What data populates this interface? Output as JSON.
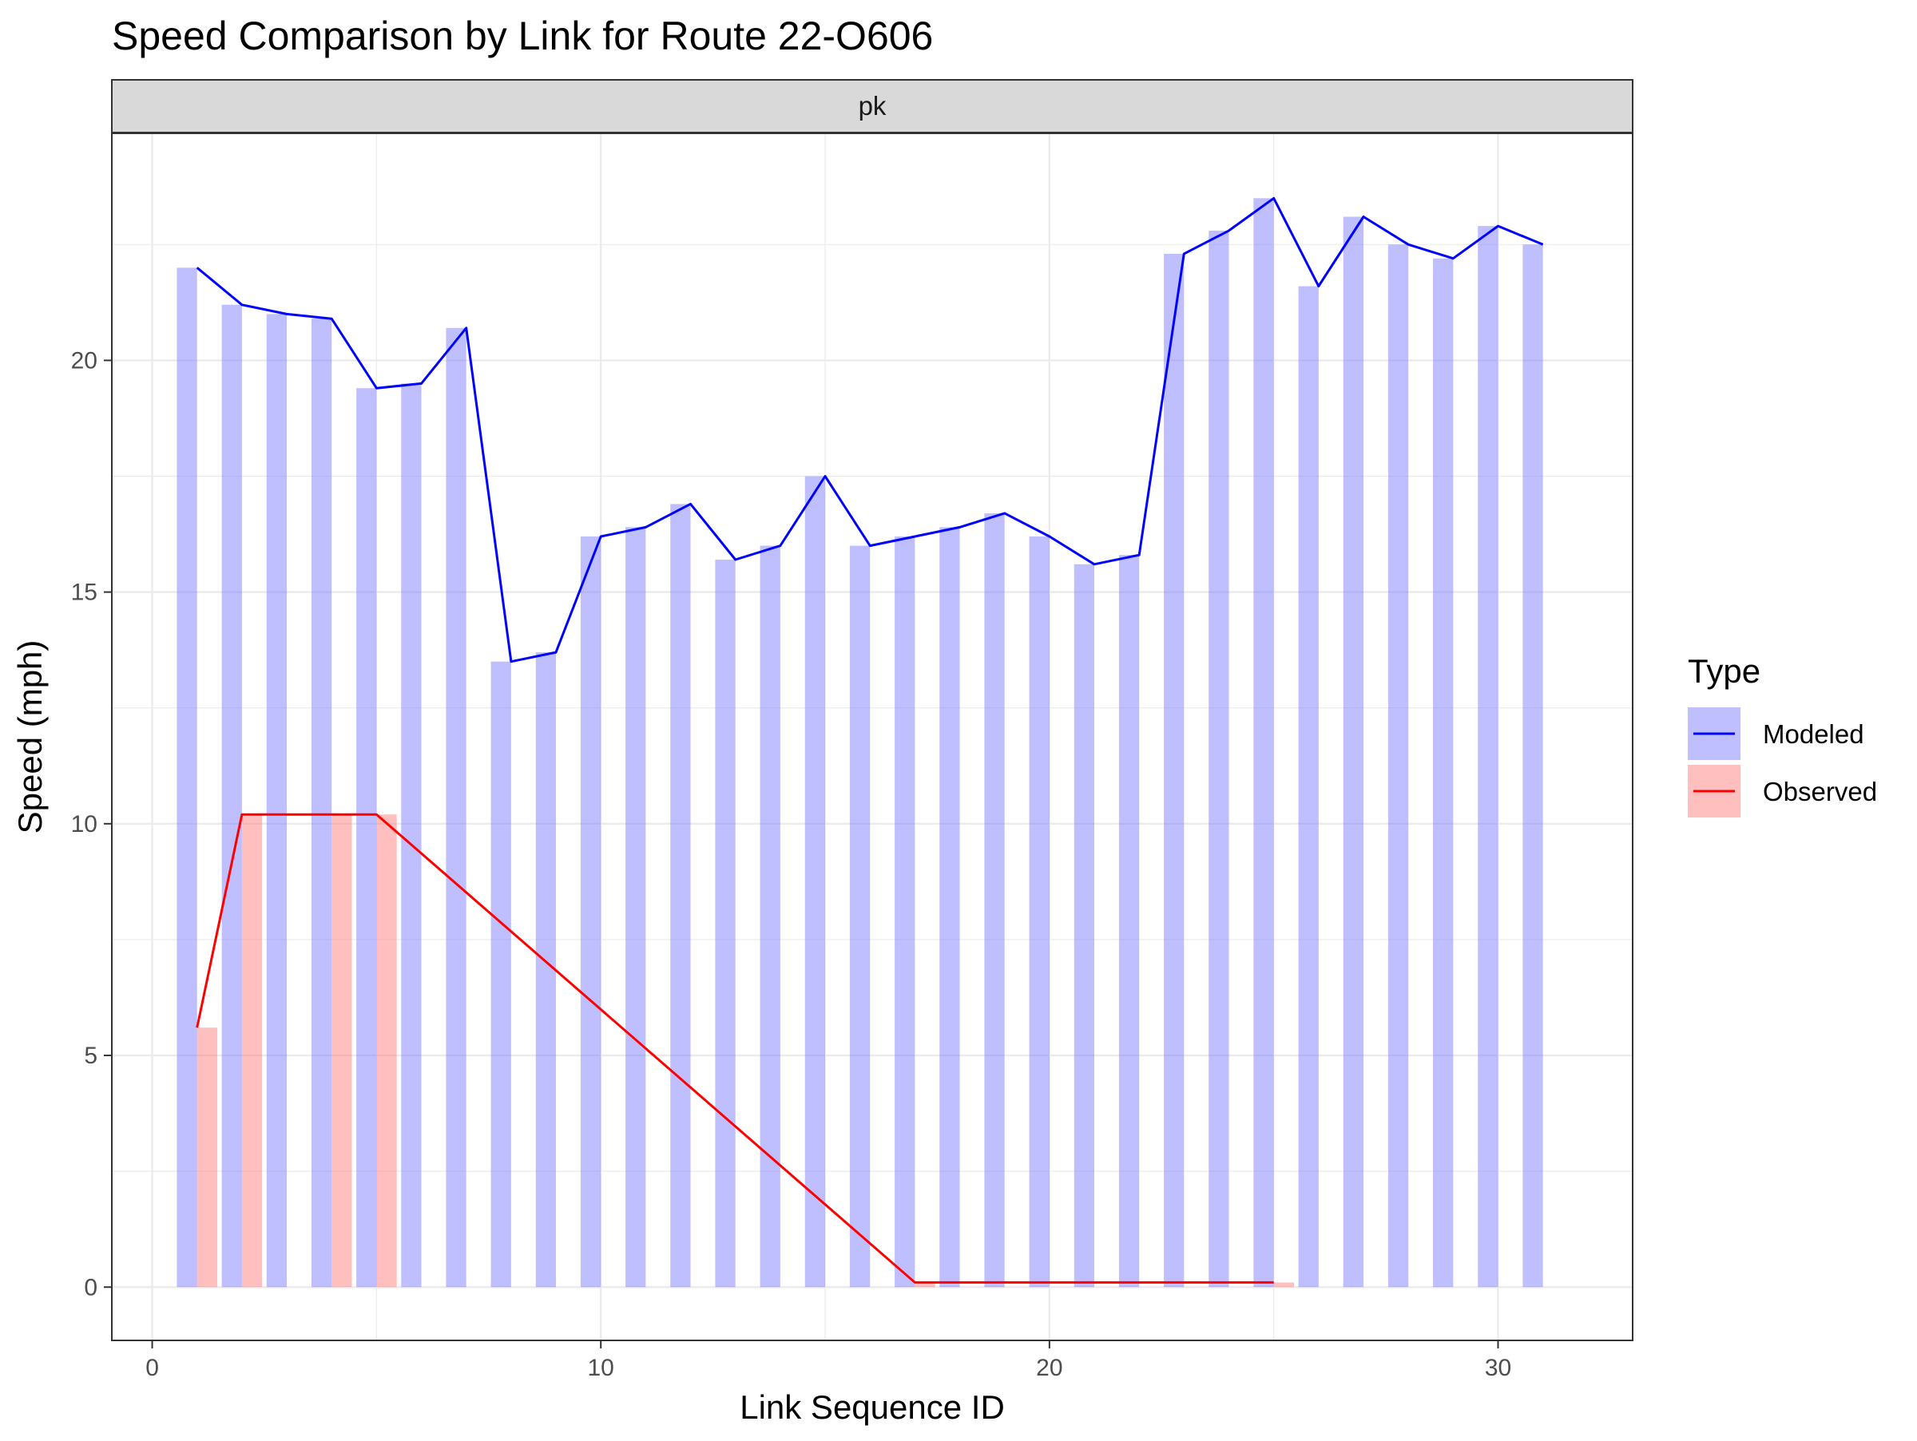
{
  "chart_data": {
    "type": "bar",
    "title": "Speed Comparison by Link for Route 22-O606",
    "facet": "pk",
    "xlabel": "Link Sequence ID",
    "ylabel": "Speed (mph)",
    "xlim": [
      -0.9,
      33
    ],
    "ylim": [
      -1.15,
      24.9
    ],
    "xticks": [
      0,
      10,
      20,
      30
    ],
    "yticks": [
      0,
      5,
      10,
      15,
      20
    ],
    "grid": true,
    "legend_title": "Type",
    "legend_position": "right",
    "series": [
      {
        "name": "Modeled",
        "bar_color": "#8080ff",
        "line_color": "#0000ff",
        "x": [
          1,
          2,
          3,
          4,
          5,
          6,
          7,
          8,
          9,
          10,
          11,
          12,
          13,
          14,
          15,
          16,
          17,
          18,
          19,
          20,
          21,
          22,
          23,
          24,
          25,
          26,
          27,
          28,
          29,
          30,
          31
        ],
        "values": [
          22.0,
          21.2,
          21.0,
          20.9,
          19.4,
          19.5,
          20.7,
          13.5,
          13.7,
          16.2,
          16.4,
          16.9,
          15.7,
          16.0,
          17.5,
          16.0,
          16.2,
          16.4,
          16.7,
          16.2,
          15.6,
          15.8,
          22.3,
          22.8,
          23.5,
          21.6,
          23.1,
          22.5,
          22.2,
          22.9,
          22.5
        ]
      },
      {
        "name": "Observed",
        "bar_color": "#ff8080",
        "line_color": "#ff0000",
        "x": [
          1,
          2,
          4,
          5,
          17,
          25
        ],
        "values": [
          5.6,
          10.2,
          10.2,
          10.2,
          0.1,
          0.1
        ]
      }
    ]
  }
}
